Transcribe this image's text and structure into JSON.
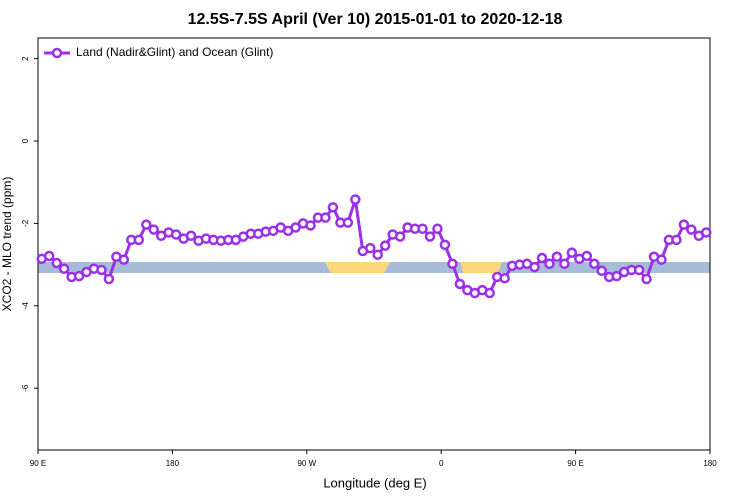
{
  "chart_data": {
    "type": "line",
    "title": "12.5S-7.5S April (Ver 10)   2015-01-01 to 2020-12-18",
    "xlabel": "Longitude (deg E)",
    "ylabel": "XCO2 - MLO trend (ppm)",
    "x": [
      92.5,
      97.5,
      102.5,
      107.5,
      112.5,
      117.5,
      122.5,
      127.5,
      132.5,
      137.5,
      142.5,
      147.5,
      152.5,
      157.5,
      162.5,
      167.5,
      172.5,
      177.5,
      182.5,
      187.5,
      192.5,
      197.5,
      202.5,
      207.5,
      212.5,
      217.5,
      222.5,
      227.5,
      232.5,
      237.5,
      242.5,
      247.5,
      252.5,
      257.5,
      262.5,
      267.5,
      272.5,
      277.5,
      282.5,
      287.5,
      292.5,
      297.5,
      302.5,
      307.5,
      312.5,
      317.5,
      322.5,
      327.5,
      332.5,
      337.5,
      342.5,
      347.5,
      352.5,
      357.5,
      362.5,
      367.5,
      372.5,
      377.5,
      382.5,
      387.5,
      392.5,
      397.5,
      402.5,
      407.5,
      412.5,
      417.5,
      422.5,
      427.5,
      432.5,
      437.5,
      442.5,
      447.5,
      452.5,
      457.5,
      462.5,
      467.5,
      472.5,
      477.5,
      482.5,
      487.5,
      492.5,
      497.5,
      502.5,
      507.5,
      512.5,
      517.5,
      522.5,
      527.5,
      532.5,
      537.5
    ],
    "series": [
      {
        "name": "Land (Nadir&Glint) and Ocean (Glint)",
        "color": "#9b30e6",
        "values": [
          -2.86,
          -2.79,
          -2.96,
          -3.1,
          -3.3,
          -3.28,
          -3.18,
          -3.1,
          -3.13,
          -3.35,
          -2.81,
          -2.88,
          -2.4,
          -2.4,
          -2.03,
          -2.15,
          -2.3,
          -2.22,
          -2.27,
          -2.37,
          -2.3,
          -2.42,
          -2.37,
          -2.4,
          -2.42,
          -2.4,
          -2.4,
          -2.32,
          -2.25,
          -2.25,
          -2.2,
          -2.18,
          -2.1,
          -2.18,
          -2.1,
          -2.0,
          -2.05,
          -1.86,
          -1.86,
          -1.61,
          -1.98,
          -1.98,
          -1.42,
          -2.67,
          -2.6,
          -2.76,
          -2.54,
          -2.27,
          -2.32,
          -2.1,
          -2.13,
          -2.13,
          -2.32,
          -2.13,
          -2.52,
          -2.98,
          -3.47,
          -3.62,
          -3.69,
          -3.62,
          -3.69,
          -3.3,
          -3.33,
          -3.03,
          -3.0,
          -2.98,
          -3.06,
          -2.84,
          -2.98,
          -2.81,
          -2.98,
          -2.71,
          -2.86,
          -2.79,
          -2.98,
          -3.15,
          -3.3,
          -3.28,
          -3.18,
          -3.13,
          -3.13,
          -3.35,
          -2.81,
          -2.88,
          -2.4,
          -2.4,
          -2.03,
          -2.15,
          -2.3,
          -2.22
        ]
      }
    ],
    "xlim": [
      90,
      540
    ],
    "xticks": [
      {
        "value": 90,
        "label": "90 E"
      },
      180,
      {
        "value": 270,
        "label": "90 W"
      },
      {
        "value": 360,
        "label": "0"
      },
      {
        "value": 450,
        "label": "90 E"
      },
      {
        "value": 540,
        "label": "180"
      }
    ],
    "ylim": [
      -7.5,
      2.5
    ],
    "yticks": [
      -6,
      -4,
      -2,
      0,
      2
    ],
    "legend": "top-left"
  }
}
